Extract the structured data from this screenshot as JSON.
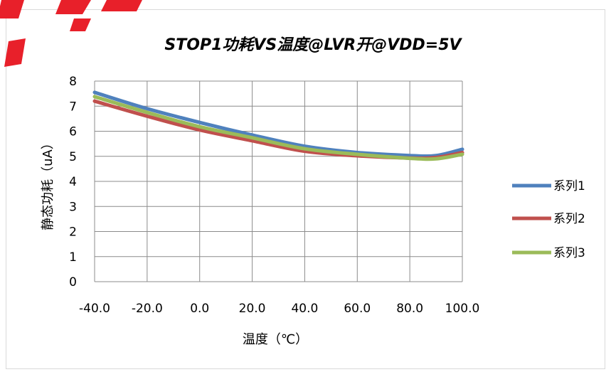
{
  "chart_data": {
    "type": "line",
    "title": "STOP1功耗VS温度@LVR开@VDD=5V",
    "xlabel": "温度（℃）",
    "ylabel": "静态功耗（uA）",
    "x_tick_labels": [
      "-40.0",
      "-20.0",
      "0.0",
      "20.0",
      "40.0",
      "60.0",
      "80.0",
      "100.0"
    ],
    "y_tick_labels": [
      "0",
      "1",
      "2",
      "3",
      "4",
      "5",
      "6",
      "7",
      "8"
    ],
    "xlim": [
      -40,
      100
    ],
    "ylim": [
      0,
      8
    ],
    "grid": true,
    "legend_position": "right",
    "x": [
      -40,
      -20,
      0,
      20,
      40,
      60,
      80,
      90,
      100
    ],
    "series": [
      {
        "name": "系列1",
        "color": "#4f81bd",
        "values": [
          7.55,
          6.9,
          6.35,
          5.85,
          5.4,
          5.15,
          5.03,
          5.03,
          5.28
        ]
      },
      {
        "name": "系列2",
        "color": "#c0504d",
        "values": [
          7.2,
          6.6,
          6.05,
          5.62,
          5.2,
          5.02,
          4.93,
          4.95,
          5.15
        ]
      },
      {
        "name": "系列3",
        "color": "#9bbb59",
        "values": [
          7.38,
          6.75,
          6.18,
          5.74,
          5.3,
          5.08,
          4.92,
          4.9,
          5.08
        ]
      }
    ],
    "decoration": {
      "corner_mark_color": "#e8202a"
    }
  }
}
